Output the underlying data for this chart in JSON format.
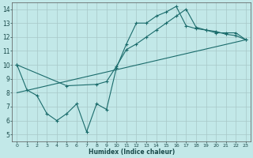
{
  "xlabel": "Humidex (Indice chaleur)",
  "xlim": [
    -0.5,
    23.5
  ],
  "ylim": [
    4.5,
    14.5
  ],
  "xticks": [
    0,
    1,
    2,
    3,
    4,
    5,
    6,
    7,
    8,
    9,
    10,
    11,
    12,
    13,
    14,
    15,
    16,
    17,
    18,
    19,
    20,
    21,
    22,
    23
  ],
  "yticks": [
    5,
    6,
    7,
    8,
    9,
    10,
    11,
    12,
    13,
    14
  ],
  "bg_color": "#c2e8e8",
  "grid_color": "#a8c8c8",
  "line_color": "#1a6b6b",
  "line1_x": [
    0,
    1,
    2,
    3,
    4,
    5,
    6,
    7,
    8,
    9,
    10,
    11,
    12,
    13,
    14,
    15,
    16,
    17,
    18,
    19,
    20,
    21,
    22,
    23
  ],
  "line1_y": [
    10.0,
    8.2,
    7.8,
    6.5,
    6.0,
    6.5,
    7.2,
    5.2,
    7.2,
    6.8,
    9.8,
    11.5,
    13.0,
    13.0,
    13.5,
    13.8,
    14.2,
    12.8,
    12.6,
    12.5,
    12.3,
    12.3,
    12.3,
    11.8
  ],
  "line2_x": [
    0,
    5,
    8,
    9,
    10,
    11,
    12,
    13,
    14,
    15,
    16,
    17,
    18,
    19,
    20,
    21,
    22,
    23
  ],
  "line2_y": [
    10.0,
    8.5,
    8.6,
    8.8,
    9.9,
    11.1,
    11.5,
    12.0,
    12.5,
    13.0,
    13.5,
    14.0,
    12.7,
    12.5,
    12.4,
    12.2,
    12.1,
    11.8
  ],
  "line3_x": [
    0,
    23
  ],
  "line3_y": [
    8.0,
    11.8
  ]
}
